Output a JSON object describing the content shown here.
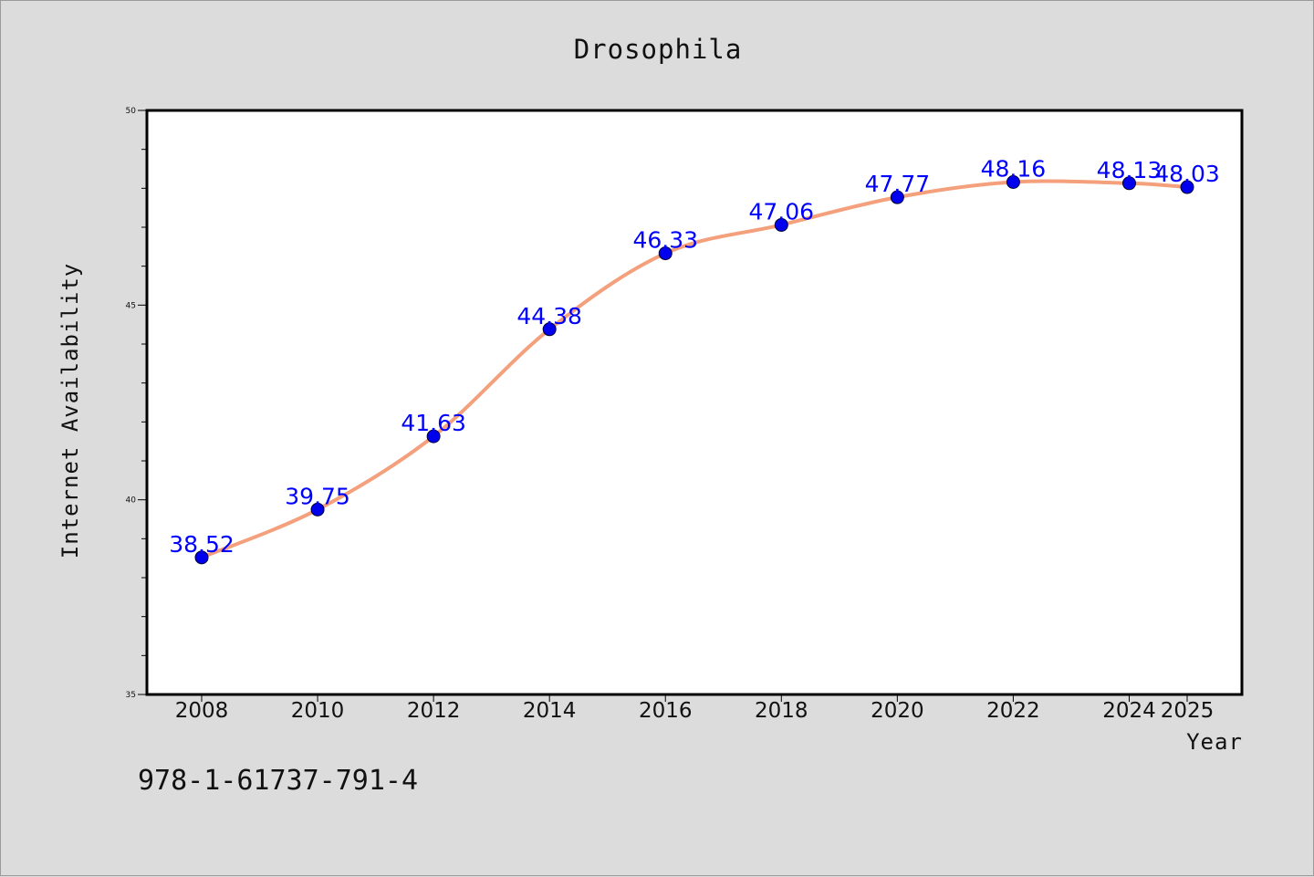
{
  "chart_data": {
    "type": "line",
    "title": "Drosophila",
    "xlabel": "Year",
    "ylabel": "Internet Availability",
    "x": [
      2008,
      2010,
      2012,
      2014,
      2016,
      2018,
      2020,
      2022,
      2024,
      2025
    ],
    "x_tick_labels": [
      "2008",
      "2010",
      "2012",
      "2014",
      "2016",
      "2018",
      "2020",
      "2022",
      "2024",
      "2025"
    ],
    "series": [
      {
        "values": [
          38.52,
          39.75,
          41.63,
          44.38,
          46.33,
          47.06,
          47.77,
          48.16,
          48.13,
          48.03
        ],
        "labels": [
          "38.52",
          "39.75",
          "41.63",
          "44.38",
          "46.33",
          "47.06",
          "47.77",
          "48.16",
          "48.13",
          "48.03"
        ],
        "line_color": "#f4a07c",
        "marker_color": "#0000ee",
        "label_color": "#0000ff"
      }
    ],
    "ylim": [
      35,
      50
    ],
    "y_ticks": [
      35,
      40,
      45,
      50
    ],
    "y_tick_labels": [
      "35",
      "40",
      "45",
      "50"
    ],
    "y_minor_step": 1,
    "grid": false,
    "legend": "none"
  },
  "footer": {
    "isbn": "978-1-61737-791-4"
  }
}
